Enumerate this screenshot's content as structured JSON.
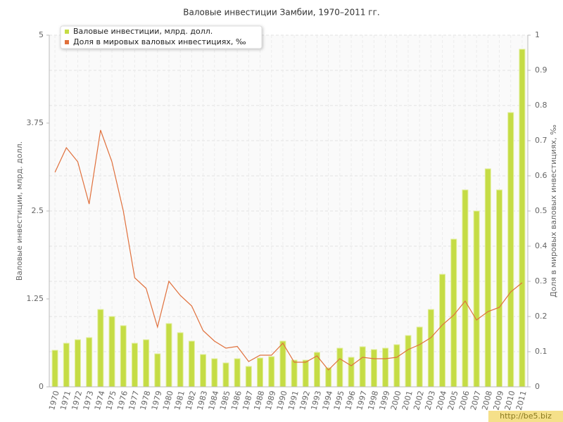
{
  "chart_data": {
    "type": "bar",
    "title": "Валовые инвестиции Замбии, 1970–2011 гг.",
    "y_label": "Валовые инвестиции, млрд. долл.",
    "y2_label": "Доля в мировых валовых инвестициях, ‰",
    "watermark": "http://be5.biz",
    "categories": [
      "1970",
      "1971",
      "1972",
      "1973",
      "1974",
      "1975",
      "1976",
      "1977",
      "1978",
      "1979",
      "1980",
      "1981",
      "1982",
      "1983",
      "1984",
      "1985",
      "1986",
      "1987",
      "1988",
      "1989",
      "1990",
      "1991",
      "1992",
      "1993",
      "1994",
      "1995",
      "1996",
      "1997",
      "1998",
      "1999",
      "2000",
      "2001",
      "2002",
      "2003",
      "2004",
      "2005",
      "2006",
      "2007",
      "2008",
      "2009",
      "2010",
      "2011"
    ],
    "series": [
      {
        "name": "Валовые инвестиции, млрд. долл.",
        "color": "#c5dc45",
        "type": "bar",
        "values": [
          0.52,
          0.62,
          0.67,
          0.7,
          1.1,
          1.0,
          0.87,
          0.62,
          0.67,
          0.47,
          0.9,
          0.77,
          0.65,
          0.46,
          0.4,
          0.34,
          0.4,
          0.29,
          0.41,
          0.43,
          0.65,
          0.38,
          0.38,
          0.49,
          0.27,
          0.55,
          0.42,
          0.57,
          0.53,
          0.55,
          0.6,
          0.73,
          0.85,
          1.1,
          1.6,
          2.1,
          2.8,
          2.5,
          3.1,
          2.8,
          3.9,
          4.8
        ]
      },
      {
        "name": "Доля в мировых валовых инвестициях, ‰",
        "color": "#e0703c",
        "type": "line",
        "axis": "y2",
        "values": [
          0.61,
          0.68,
          0.64,
          0.52,
          0.73,
          0.64,
          0.5,
          0.31,
          0.28,
          0.17,
          0.3,
          0.26,
          0.23,
          0.16,
          0.13,
          0.11,
          0.115,
          0.072,
          0.09,
          0.09,
          0.124,
          0.07,
          0.07,
          0.088,
          0.048,
          0.08,
          0.06,
          0.084,
          0.08,
          0.08,
          0.084,
          0.106,
          0.12,
          0.14,
          0.176,
          0.204,
          0.244,
          0.19,
          0.214,
          0.226,
          0.27,
          0.296
        ]
      }
    ],
    "ylim": [
      0,
      5
    ],
    "yticks": [
      0,
      1.25,
      2.5,
      3.75,
      5
    ],
    "y2lim": [
      0,
      1
    ],
    "y2ticks": [
      0,
      0.1,
      0.2,
      0.3,
      0.4,
      0.5,
      0.6,
      0.7,
      0.8,
      0.9,
      1
    ],
    "grid": true,
    "legend": "top-left"
  }
}
